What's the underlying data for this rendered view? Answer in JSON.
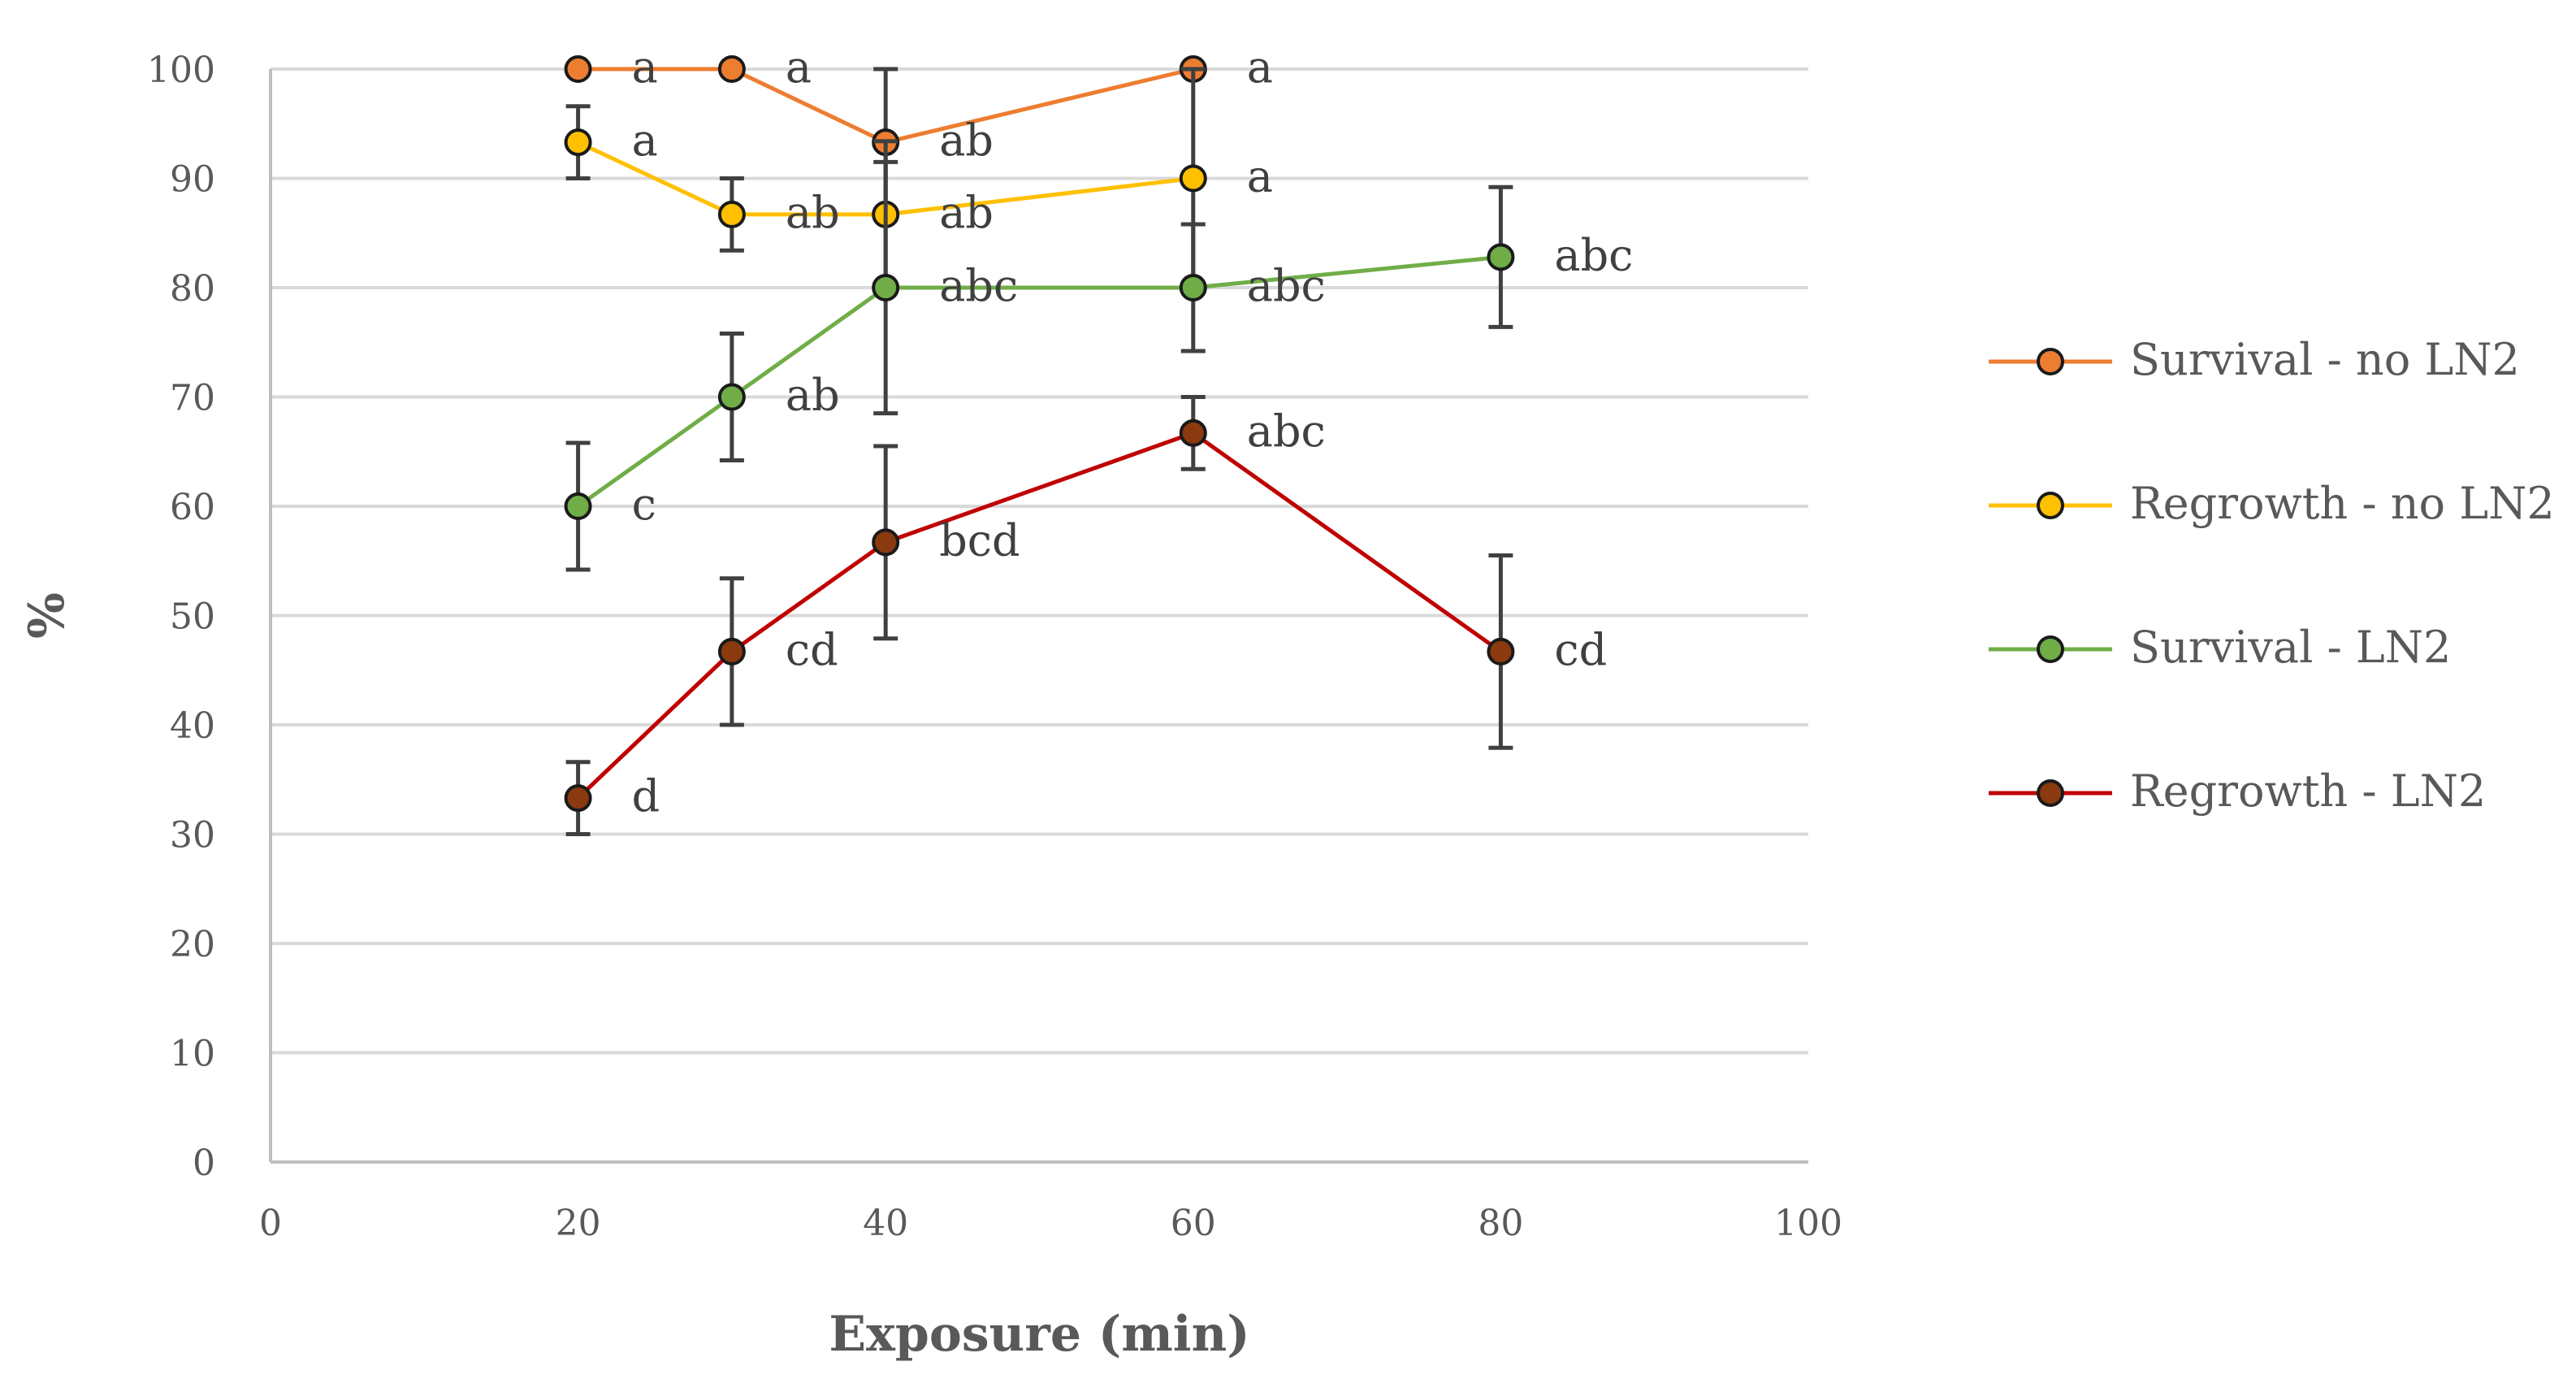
{
  "chart_data": {
    "type": "line",
    "title": "",
    "xlabel": "Exposure (min)",
    "ylabel": "%",
    "xlim": [
      0,
      100
    ],
    "ylim": [
      0,
      100
    ],
    "xticks": [
      0,
      20,
      40,
      60,
      80,
      100
    ],
    "yticks": [
      0,
      10,
      20,
      30,
      40,
      50,
      60,
      70,
      80,
      90,
      100
    ],
    "grid": "horizontal",
    "legend_position": "right",
    "series": [
      {
        "name": "Survival - no LN2",
        "color": "#ED7D31",
        "x": [
          20,
          30,
          40,
          60
        ],
        "y": [
          100,
          100,
          93.3,
          100
        ],
        "error": [
          0,
          0,
          6.7,
          0
        ],
        "letters": [
          "a",
          "a",
          "ab",
          "a"
        ]
      },
      {
        "name": "Regrowth - no LN2",
        "color": "#FFC000",
        "x": [
          20,
          30,
          40,
          60
        ],
        "y": [
          93.3,
          86.7,
          86.7,
          90
        ],
        "error": [
          3.3,
          3.3,
          6.7,
          10
        ],
        "letters": [
          "a",
          "ab",
          "ab",
          "a"
        ]
      },
      {
        "name": "Survival - LN2",
        "color": "#70AD47",
        "x": [
          20,
          30,
          40,
          60,
          80
        ],
        "y": [
          60,
          70,
          80,
          80,
          82.8
        ],
        "error": [
          5.8,
          5.8,
          11.5,
          5.8,
          6.4
        ],
        "letters": [
          "c",
          "ab",
          "abc",
          "abc",
          "abc"
        ]
      },
      {
        "name": "Regrowth - LN2",
        "color": "#C00000",
        "marker_color": "#8B3A0F",
        "x": [
          20,
          30,
          40,
          60,
          80
        ],
        "y": [
          33.3,
          46.7,
          56.7,
          66.7,
          46.7
        ],
        "error": [
          3.3,
          6.7,
          8.8,
          3.3,
          8.8
        ],
        "letters": [
          "d",
          "cd",
          "bcd",
          "abc",
          "cd"
        ]
      }
    ]
  }
}
